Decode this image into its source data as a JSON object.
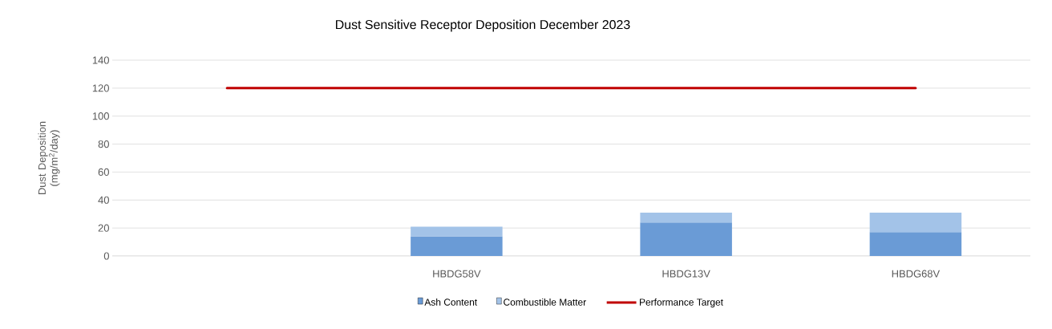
{
  "chart_data": {
    "type": "bar",
    "title": "Dust Sensitive Receptor Deposition December 2023",
    "ylabel": "Dust Deposition (mg/m$^{2}$/day)",
    "categories": [
      null,
      "HBDG58V",
      "HBDG13V",
      "HBDG68V"
    ],
    "stacked": true,
    "series": [
      {
        "name": "Ash Content",
        "color": "#6a9bd6",
        "values": [
          null,
          14,
          24,
          17
        ]
      },
      {
        "name": "Combustible Matter",
        "color": "#a3c3e8",
        "values": [
          null,
          7,
          7,
          14
        ]
      },
      {
        "name": "Performance Target",
        "color": "#c00000",
        "type": "line",
        "values": [
          120,
          120,
          120,
          120
        ]
      }
    ],
    "ylim": [
      0,
      140
    ],
    "yticks": [
      0,
      20,
      40,
      60,
      80,
      100,
      120,
      140
    ],
    "grid": "y",
    "legend": "bottom"
  }
}
